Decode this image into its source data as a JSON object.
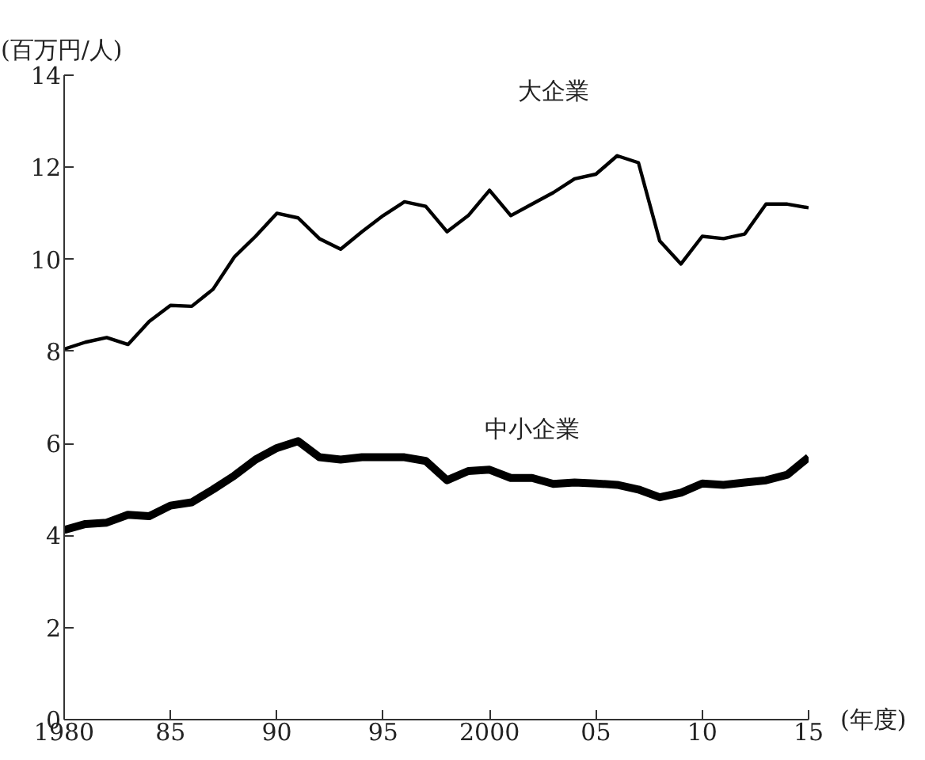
{
  "chart_data": {
    "type": "line",
    "ylabel": "(百万円/人)",
    "xlabel": "(年度)",
    "x": [
      1980,
      1981,
      1982,
      1983,
      1984,
      1985,
      1986,
      1987,
      1988,
      1989,
      1990,
      1991,
      1992,
      1993,
      1994,
      1995,
      1996,
      1997,
      1998,
      1999,
      2000,
      2001,
      2002,
      2003,
      2004,
      2005,
      2006,
      2007,
      2008,
      2009,
      2010,
      2011,
      2012,
      2013,
      2014,
      2015
    ],
    "series": [
      {
        "name": "大企業",
        "color": "#000000",
        "values": [
          8.05,
          8.2,
          8.3,
          8.15,
          8.65,
          9.0,
          8.98,
          9.35,
          10.05,
          10.5,
          11.0,
          10.9,
          10.45,
          10.22,
          10.6,
          10.95,
          11.25,
          11.15,
          10.6,
          10.95,
          11.5,
          10.95,
          11.2,
          11.45,
          11.75,
          11.85,
          12.25,
          12.1,
          10.4,
          9.9,
          10.5,
          10.45,
          10.55,
          11.2,
          11.2,
          11.12
        ]
      },
      {
        "name": "中小企業",
        "color": "#000000",
        "values": [
          4.12,
          4.25,
          4.28,
          4.45,
          4.42,
          4.65,
          4.72,
          5.0,
          5.3,
          5.65,
          5.9,
          6.05,
          5.7,
          5.65,
          5.7,
          5.7,
          5.7,
          5.62,
          5.2,
          5.4,
          5.43,
          5.25,
          5.25,
          5.12,
          5.15,
          5.13,
          5.1,
          5.0,
          4.83,
          4.93,
          5.13,
          5.1,
          5.15,
          5.2,
          5.32,
          5.7
        ]
      }
    ],
    "xlim": [
      1980,
      2015
    ],
    "ylim": [
      0,
      14
    ],
    "xticks": [
      1980,
      {
        "value": 1985,
        "label": "85"
      },
      {
        "value": 1990,
        "label": "90"
      },
      {
        "value": 1995,
        "label": "95"
      },
      2000,
      {
        "value": 2005,
        "label": "05"
      },
      {
        "value": 2010,
        "label": "10"
      },
      {
        "value": 2015,
        "label": "15"
      }
    ],
    "yticks": [
      0,
      2,
      4,
      6,
      8,
      10,
      12,
      14
    ],
    "grid": false,
    "legend": false,
    "marker": "none",
    "line_style": "solid"
  }
}
